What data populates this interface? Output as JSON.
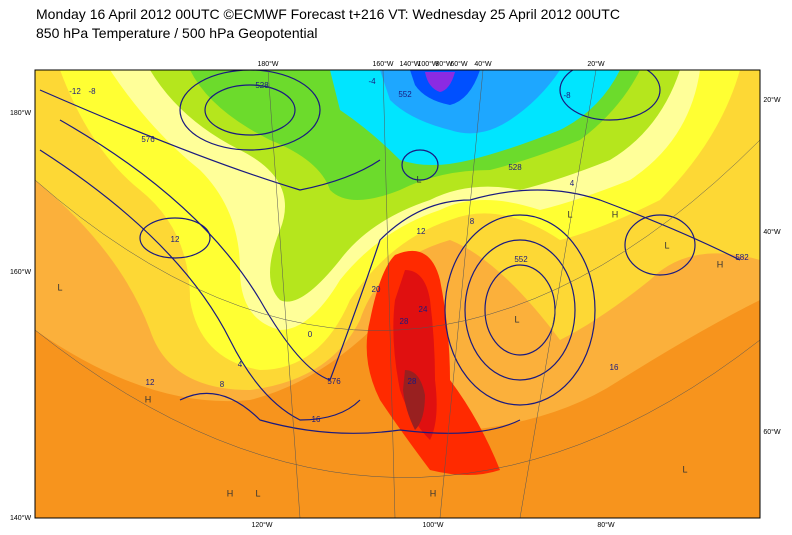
{
  "header": {
    "title": "Monday 16 April 2012 00UTC ©ECMWF Forecast t+216 VT: Wednesday 25 April 2012 00UTC",
    "subtitle": "850 hPa Temperature / 500 hPa Geopotential"
  },
  "map": {
    "top_labels": [
      "180°W",
      "160°W",
      "140°W",
      "100°W",
      "80°W",
      "60°W",
      "40°W",
      "20°W"
    ],
    "bottom_labels": [
      "120°W",
      "100°W",
      "80°W"
    ],
    "left_labels": [
      "180°W",
      "160°W",
      "140°W"
    ],
    "right_labels": [
      "20°W",
      "40°W",
      "60°W"
    ],
    "contour_labels": [
      "-12",
      "-8",
      "528",
      "576",
      "12",
      "12",
      "20",
      "24",
      "28",
      "28",
      "0",
      "4",
      "8",
      "12",
      "16",
      "552",
      "552",
      "582",
      "576",
      "-4",
      "8",
      "-8",
      "16",
      "4",
      "528"
    ],
    "pressure_labels": [
      "H",
      "H",
      "H",
      "H",
      "H",
      "L",
      "L",
      "L",
      "L",
      "L",
      "L",
      "L"
    ]
  }
}
